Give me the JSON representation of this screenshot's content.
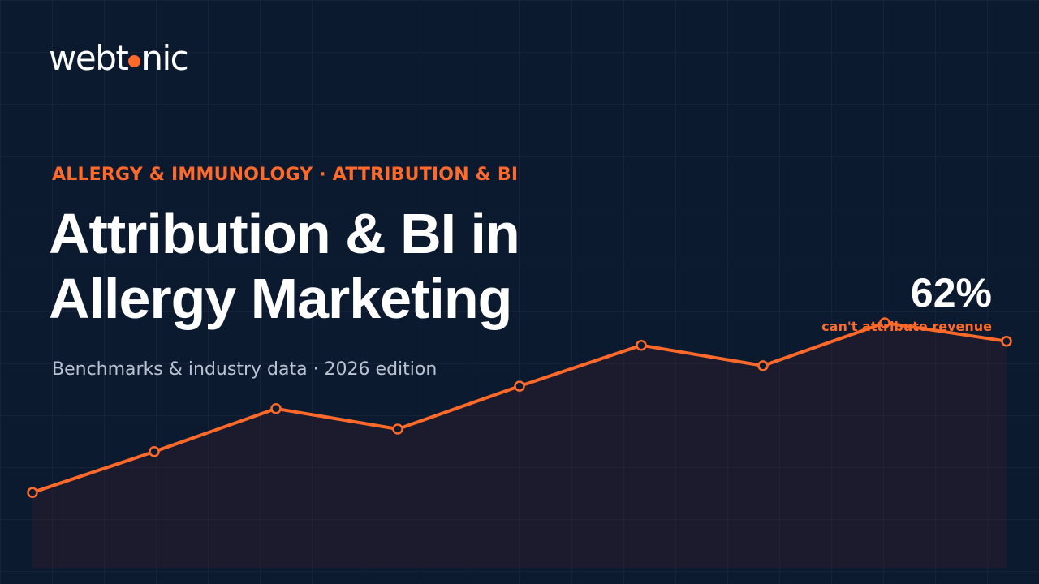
{
  "brand": {
    "logo_left": "webt",
    "logo_right": "nic",
    "accent_color": "#ff6a2b",
    "background_color": "#0c1a30"
  },
  "hero": {
    "eyebrow": "ALLERGY & IMMUNOLOGY · ATTRIBUTION & BI",
    "title_line1": "Attribution & BI in",
    "title_line2": "Allergy Marketing",
    "subtitle": "Benchmarks & industry data · 2026 edition"
  },
  "stat": {
    "value": "62%",
    "label": "can't attribute revenue"
  },
  "chart_data": {
    "type": "area",
    "title": "",
    "xlabel": "",
    "ylabel": "",
    "grid": true,
    "ylim": [
      0,
      100
    ],
    "series": [
      {
        "values": [
          17,
          37,
          58,
          48,
          69,
          89,
          79,
          100,
          91
        ]
      }
    ]
  }
}
